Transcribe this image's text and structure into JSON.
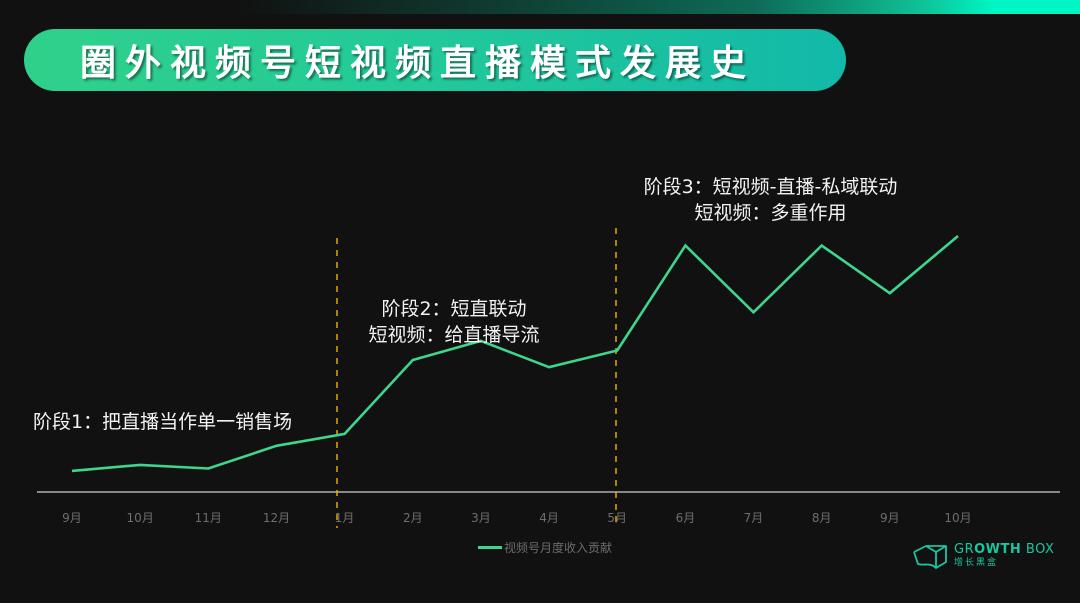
{
  "title": "圈外视频号短视频直播模式发展史",
  "annotations": {
    "stage1": "阶段1：把直播当作单一销售场",
    "stage2_line1": "阶段2：短直联动",
    "stage2_line2": "短视频：给直播导流",
    "stage3_line1": "阶段3：短视频-直播-私域联动",
    "stage3_line2": "短视频：多重作用"
  },
  "legend": {
    "label": "视频号月度收入贡献"
  },
  "logo": {
    "en_light": "GR",
    "en_bold": "OWTH",
    "en_rest": " BOX",
    "cn": "增长黑盒"
  },
  "colors": {
    "line": "#3fd58c",
    "divider": "#f0b400",
    "axis": "#cfcfcf",
    "tick": "#6e6e6e"
  },
  "chart_data": {
    "type": "line",
    "title": "圈外视频号短视频直播模式发展史",
    "xlabel": "",
    "ylabel": "",
    "categories": [
      "9月",
      "10月",
      "11月",
      "12月",
      "1月",
      "2月",
      "3月",
      "4月",
      "5月",
      "6月",
      "7月",
      "8月",
      "9月",
      "10月"
    ],
    "series": [
      {
        "name": "视频号月度收入贡献",
        "values": [
          5.5,
          8,
          6.5,
          16,
          21,
          52,
          60,
          49,
          56,
          100,
          72,
          100,
          80,
          104
        ]
      }
    ],
    "ylim": [
      0,
      110
    ],
    "grid": false,
    "legend_position": "bottom",
    "y_axis_visible": false,
    "annotations": [
      {
        "text": "阶段1：把直播当作单一销售场",
        "range": [
          "9月",
          "1月"
        ]
      },
      {
        "text": "阶段2：短直联动 / 短视频：给直播导流",
        "range": [
          "1月",
          "5月"
        ]
      },
      {
        "text": "阶段3：短视频-直播-私域联动 / 短视频：多重作用",
        "range": [
          "5月",
          "10月"
        ]
      }
    ],
    "vertical_dividers": [
      "1月",
      "5月"
    ]
  }
}
